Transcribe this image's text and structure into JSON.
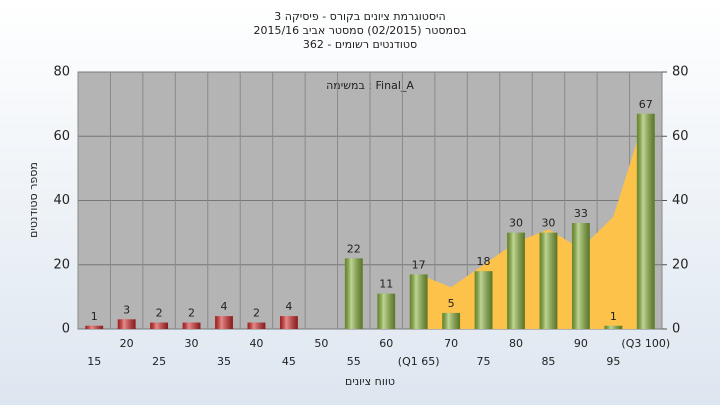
{
  "chart_data": {
    "type": "bar",
    "title": "היסטוגרמת ציונים בקורס - פיסיקה 3",
    "subtitle": [
      "בסמסטר  (02/2015)  סמסטר אביב 2015/16",
      "סטודנטים רשומים - 362"
    ],
    "annotation": "Final_A : במשימה",
    "x_label": "טווח ציונים",
    "y_label": "מספר סטודנטים",
    "categories": [
      "15",
      "20",
      "25",
      "30",
      "35",
      "40",
      "45",
      "50",
      "55",
      "60",
      "(Q1 65)",
      "70",
      "75",
      "80",
      "85",
      "90",
      "95",
      "(Q3 100)"
    ],
    "series": [
      {
        "type": "area",
        "color": "#fcc24a",
        "values": [
          null,
          null,
          null,
          null,
          null,
          null,
          null,
          null,
          null,
          null,
          17,
          13,
          20,
          27,
          31,
          25,
          35,
          67
        ]
      },
      {
        "type": "bar",
        "colors": [
          "#d42a2a",
          "#d42a2a",
          "#d42a2a",
          "#d42a2a",
          "#d42a2a",
          "#d42a2a",
          "#d42a2a",
          "#d42a2a",
          "#8ab43c",
          "#8ab43c",
          "#8ab43c",
          "#8ab43c",
          "#8ab43c",
          "#8ab43c",
          "#8ab43c",
          "#8ab43c",
          "#8ab43c",
          "#8ab43c"
        ],
        "values": [
          1,
          3,
          2,
          2,
          4,
          2,
          4,
          null,
          22,
          11,
          17,
          5,
          18,
          30,
          30,
          33,
          1,
          67
        ]
      }
    ],
    "ylim": [
      0,
      80
    ],
    "yticks": [
      0,
      20,
      40,
      60,
      80
    ],
    "y2lim": [
      0,
      80
    ],
    "y2ticks": [
      0,
      20,
      40,
      60,
      80
    ],
    "grid": true
  }
}
